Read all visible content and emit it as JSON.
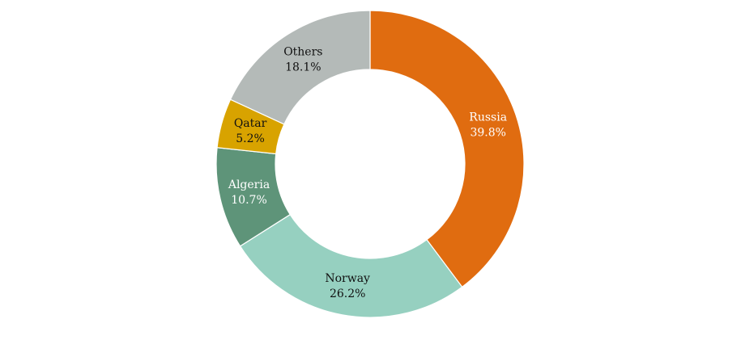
{
  "chart_data": {
    "type": "donut",
    "categories": [
      "Russia",
      "Norway",
      "Algeria",
      "Qatar",
      "Others"
    ],
    "values": [
      39.8,
      26.2,
      10.7,
      5.2,
      18.1
    ],
    "value_labels": [
      "39.8%",
      "26.2%",
      "10.7%",
      "5.2%",
      "18.1%"
    ],
    "colors": [
      "#e06c10",
      "#96d0c0",
      "#5e9479",
      "#d8a300",
      "#b4bab8"
    ]
  }
}
